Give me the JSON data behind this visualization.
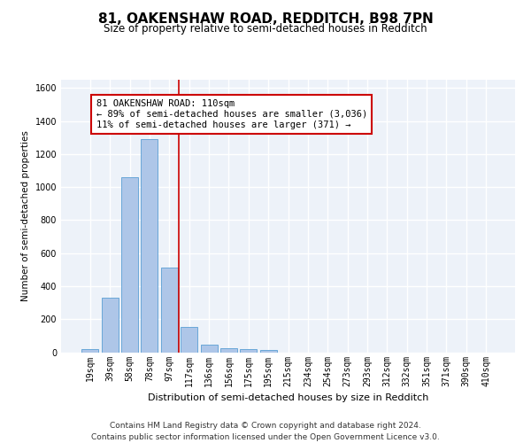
{
  "title1": "81, OAKENSHAW ROAD, REDDITCH, B98 7PN",
  "title2": "Size of property relative to semi-detached houses in Redditch",
  "xlabel": "Distribution of semi-detached houses by size in Redditch",
  "ylabel": "Number of semi-detached properties",
  "categories": [
    "19sqm",
    "39sqm",
    "58sqm",
    "78sqm",
    "97sqm",
    "117sqm",
    "136sqm",
    "156sqm",
    "175sqm",
    "195sqm",
    "215sqm",
    "234sqm",
    "254sqm",
    "273sqm",
    "293sqm",
    "312sqm",
    "332sqm",
    "351sqm",
    "371sqm",
    "390sqm",
    "410sqm"
  ],
  "values": [
    20,
    330,
    1060,
    1290,
    510,
    155,
    48,
    25,
    20,
    12,
    0,
    0,
    0,
    0,
    0,
    0,
    0,
    0,
    0,
    0,
    0
  ],
  "bar_color": "#aec6e8",
  "bar_edgecolor": "#5a9fd4",
  "vline_color": "#cc0000",
  "annotation_text": "81 OAKENSHAW ROAD: 110sqm\n← 89% of semi-detached houses are smaller (3,036)\n11% of semi-detached houses are larger (371) →",
  "annotation_box_edgecolor": "#cc0000",
  "annotation_box_facecolor": "#ffffff",
  "ylim": [
    0,
    1650
  ],
  "yticks": [
    0,
    200,
    400,
    600,
    800,
    1000,
    1200,
    1400,
    1600
  ],
  "footer": "Contains HM Land Registry data © Crown copyright and database right 2024.\nContains public sector information licensed under the Open Government Licence v3.0.",
  "background_color": "#edf2f9",
  "grid_color": "#ffffff",
  "title1_fontsize": 11,
  "title2_fontsize": 8.5,
  "xlabel_fontsize": 8,
  "ylabel_fontsize": 7.5,
  "tick_fontsize": 7,
  "annotation_fontsize": 7.5,
  "footer_fontsize": 6.5
}
